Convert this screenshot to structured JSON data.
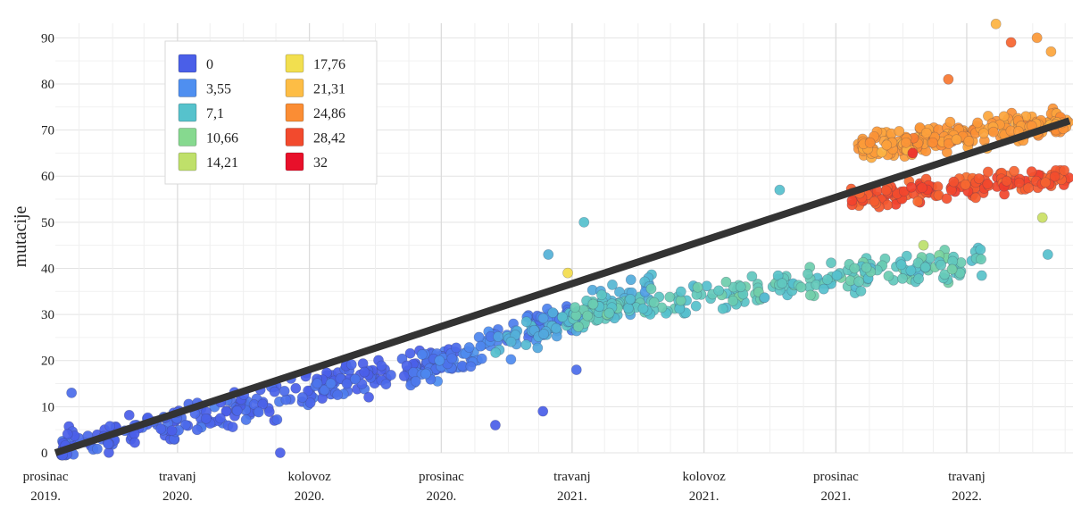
{
  "chart_data": {
    "type": "scatter",
    "title": "",
    "xlabel": "",
    "ylabel": "mutacije",
    "ylim": [
      0,
      92
    ],
    "xlim": [
      "2019-12-10",
      "2022-07-05"
    ],
    "y_ticks": [
      0,
      10,
      20,
      30,
      40,
      50,
      60,
      70,
      80,
      90
    ],
    "x_ticks": [
      {
        "date": "2019-12-01",
        "line1": "prosinac",
        "line2": "2019."
      },
      {
        "date": "2020-04-01",
        "line1": "travanj",
        "line2": "2020."
      },
      {
        "date": "2020-08-01",
        "line1": "kolovoz",
        "line2": "2020."
      },
      {
        "date": "2020-12-01",
        "line1": "prosinac",
        "line2": "2020."
      },
      {
        "date": "2021-04-01",
        "line1": "travanj",
        "line2": "2021."
      },
      {
        "date": "2021-08-01",
        "line1": "kolovoz",
        "line2": "2021."
      },
      {
        "date": "2021-12-01",
        "line1": "prosinac",
        "line2": "2021."
      },
      {
        "date": "2022-04-01",
        "line1": "travanj",
        "line2": "2022."
      }
    ],
    "grid": true,
    "legend_placement": "top-left",
    "legend": [
      {
        "label": "0",
        "color": "#4a5fe8"
      },
      {
        "label": "3,55",
        "color": "#4f8ff0"
      },
      {
        "label": "7,1",
        "color": "#56c2cc"
      },
      {
        "label": "10,66",
        "color": "#86d98f"
      },
      {
        "label": "14,21",
        "color": "#bfe06a"
      },
      {
        "label": "17,76",
        "color": "#f2df4f"
      },
      {
        "label": "21,31",
        "color": "#fdbd45"
      },
      {
        "label": "24,86",
        "color": "#fb8d34"
      },
      {
        "label": "28,42",
        "color": "#f24a2d"
      },
      {
        "label": "32",
        "color": "#e8102a"
      }
    ],
    "color_scale": {
      "min": 0,
      "max": 32
    },
    "trend_line": {
      "x": [
        "2019-12-10",
        "2022-07-05"
      ],
      "y": [
        0,
        72
      ],
      "color": "#333333"
    },
    "clusters": [
      {
        "x_start": "2019-12-15",
        "x_end": "2020-12-15",
        "y_start": 1,
        "y_end": 21,
        "spread": 4,
        "count": 260,
        "color_value": 0.5
      },
      {
        "x_start": "2020-11-01",
        "x_end": "2021-04-01",
        "y_start": 16,
        "y_end": 30,
        "spread": 4,
        "count": 110,
        "color_value": 2.5
      },
      {
        "x_start": "2021-01-15",
        "x_end": "2021-06-15",
        "y_start": 22,
        "y_end": 36,
        "spread": 4,
        "count": 80,
        "color_value": 6
      },
      {
        "x_start": "2021-04-01",
        "x_end": "2022-04-15",
        "y_start": 30,
        "y_end": 42,
        "spread": 3.5,
        "count": 230,
        "color_value": 8
      },
      {
        "x_start": "2021-12-15",
        "x_end": "2022-07-05",
        "y_start": 55,
        "y_end": 60,
        "spread": 2.5,
        "count": 150,
        "color_value": 28
      },
      {
        "x_start": "2021-12-20",
        "x_end": "2022-07-05",
        "y_start": 66,
        "y_end": 72,
        "spread": 3,
        "count": 230,
        "color_value": 24
      }
    ],
    "highlight_points": [
      {
        "x": "2019-12-25",
        "y": 13,
        "color_value": 1
      },
      {
        "x": "2020-07-05",
        "y": 0,
        "color_value": 0
      },
      {
        "x": "2021-03-10",
        "y": 43,
        "color_value": 6
      },
      {
        "x": "2021-03-28",
        "y": 39,
        "color_value": 18
      },
      {
        "x": "2021-04-05",
        "y": 18,
        "color_value": 1
      },
      {
        "x": "2021-04-12",
        "y": 50,
        "color_value": 7
      },
      {
        "x": "2021-10-10",
        "y": 57,
        "color_value": 7
      },
      {
        "x": "2021-03-05",
        "y": 9,
        "color_value": 0
      },
      {
        "x": "2021-01-20",
        "y": 6,
        "color_value": 0
      },
      {
        "x": "2022-02-20",
        "y": 45,
        "color_value": 14
      },
      {
        "x": "2022-04-28",
        "y": 93,
        "color_value": 22
      },
      {
        "x": "2022-05-12",
        "y": 89,
        "color_value": 27
      },
      {
        "x": "2022-06-05",
        "y": 90,
        "color_value": 24
      },
      {
        "x": "2022-06-18",
        "y": 87,
        "color_value": 23
      },
      {
        "x": "2022-06-10",
        "y": 51,
        "color_value": 15
      },
      {
        "x": "2022-06-15",
        "y": 43,
        "color_value": 7
      },
      {
        "x": "2022-03-15",
        "y": 81,
        "color_value": 26
      },
      {
        "x": "2022-02-10",
        "y": 65,
        "color_value": 30
      }
    ]
  }
}
